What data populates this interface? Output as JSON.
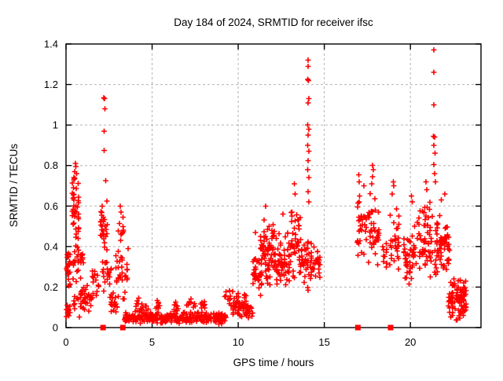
{
  "window": {
    "background": "#ffffff"
  },
  "chart_data": {
    "type": "scatter",
    "title": "Day 184 of 2024, SRMTID for receiver ifsc",
    "xlabel": "GPS time / hours",
    "ylabel": "SRMTID / TECUs",
    "xlim": [
      0,
      24.1
    ],
    "ylim": [
      0,
      1.4
    ],
    "xticks": [
      0,
      5,
      10,
      15,
      20
    ],
    "xtick_labels": [
      "0",
      "5",
      "10",
      "15",
      "20"
    ],
    "yticks": [
      0,
      0.2,
      0.4,
      0.6,
      0.8,
      1,
      1.2,
      1.4
    ],
    "ytick_labels": [
      "0",
      "0.2",
      "0.4",
      "0.6",
      "0.8",
      "1",
      "1.2",
      "1.4"
    ],
    "grid": true,
    "grid_color": "#b3b3b3",
    "border_color": "#000000",
    "marker": "plus",
    "marker_color": "#ff0000",
    "series_name": "SRMTID for receiver ifsc",
    "peak_points": [
      [
        0.5,
        0.77
      ],
      [
        0.55,
        0.81
      ],
      [
        0.57,
        0.795
      ],
      [
        0.62,
        0.76
      ],
      [
        0.45,
        0.74
      ],
      [
        2.2,
        1.135
      ],
      [
        2.24,
        1.13
      ],
      [
        2.27,
        1.08
      ],
      [
        2.21,
        0.97
      ],
      [
        2.22,
        0.875
      ],
      [
        2.3,
        0.725
      ],
      [
        3.15,
        0.6
      ],
      [
        3.2,
        0.57
      ],
      [
        11.0,
        0.47
      ],
      [
        11.6,
        0.6
      ],
      [
        12.6,
        0.56
      ],
      [
        13.25,
        0.71
      ],
      [
        13.3,
        0.66
      ],
      [
        14.05,
        1.32
      ],
      [
        14.06,
        1.29
      ],
      [
        14.03,
        1.225
      ],
      [
        14.08,
        1.22
      ],
      [
        14.1,
        1.13
      ],
      [
        14.05,
        1.11
      ],
      [
        14.04,
        1.0
      ],
      [
        14.1,
        0.98
      ],
      [
        14.05,
        0.95
      ],
      [
        14.04,
        0.9
      ],
      [
        14.1,
        0.87
      ],
      [
        14.05,
        0.825
      ],
      [
        14.04,
        0.78
      ],
      [
        14.1,
        0.74
      ],
      [
        14.05,
        0.67
      ],
      [
        14.1,
        0.62
      ],
      [
        17.0,
        0.755
      ],
      [
        17.03,
        0.72
      ],
      [
        17.3,
        0.7
      ],
      [
        17.05,
        0.65
      ],
      [
        17.8,
        0.8
      ],
      [
        17.84,
        0.78
      ],
      [
        17.8,
        0.745
      ],
      [
        17.75,
        0.71
      ],
      [
        19.0,
        0.72
      ],
      [
        19.04,
        0.7
      ],
      [
        18.95,
        0.66
      ],
      [
        20.05,
        0.65
      ],
      [
        20.1,
        0.62
      ],
      [
        20.9,
        0.72
      ],
      [
        20.95,
        0.68
      ],
      [
        21.35,
        1.37
      ],
      [
        21.36,
        1.26
      ],
      [
        21.35,
        1.1
      ],
      [
        21.33,
        0.945
      ],
      [
        21.4,
        0.94
      ],
      [
        21.36,
        0.9
      ],
      [
        21.42,
        0.86
      ],
      [
        21.35,
        0.805
      ],
      [
        21.4,
        0.76
      ],
      [
        21.45,
        0.72
      ],
      [
        22.0,
        0.66
      ],
      [
        21.8,
        0.63
      ]
    ],
    "cluster_regions": [
      [
        0.02,
        0.3,
        0.17,
        0.4,
        24
      ],
      [
        0.02,
        0.25,
        0.05,
        0.17,
        10
      ],
      [
        0.35,
        0.75,
        0.42,
        0.78,
        42
      ],
      [
        0.4,
        1.0,
        0.22,
        0.45,
        30
      ],
      [
        0.4,
        1.15,
        0.05,
        0.22,
        26
      ],
      [
        1.1,
        1.55,
        0.07,
        0.22,
        15
      ],
      [
        1.5,
        1.9,
        0.12,
        0.3,
        14
      ],
      [
        2.0,
        2.4,
        0.33,
        0.66,
        28
      ],
      [
        2.1,
        2.65,
        0.17,
        0.38,
        20
      ],
      [
        2.55,
        3.0,
        0.05,
        0.18,
        18
      ],
      [
        2.9,
        3.6,
        0.1,
        0.44,
        30
      ],
      [
        3.0,
        3.45,
        0.38,
        0.55,
        10
      ],
      [
        3.4,
        9.3,
        0.015,
        0.08,
        280
      ],
      [
        4.0,
        4.8,
        0.07,
        0.15,
        16
      ],
      [
        5.1,
        5.45,
        0.07,
        0.15,
        10
      ],
      [
        6.2,
        6.5,
        0.06,
        0.14,
        8
      ],
      [
        6.9,
        7.5,
        0.07,
        0.16,
        10
      ],
      [
        7.8,
        8.1,
        0.07,
        0.14,
        8
      ],
      [
        9.2,
        10.45,
        0.04,
        0.19,
        60
      ],
      [
        10.45,
        10.85,
        0.04,
        0.13,
        16
      ],
      [
        10.85,
        11.35,
        0.12,
        0.42,
        32
      ],
      [
        11.3,
        12.1,
        0.18,
        0.54,
        62
      ],
      [
        12.0,
        13.0,
        0.18,
        0.48,
        62
      ],
      [
        13.0,
        13.6,
        0.22,
        0.63,
        40
      ],
      [
        13.55,
        14.3,
        0.18,
        0.5,
        46
      ],
      [
        14.3,
        14.75,
        0.2,
        0.45,
        20
      ],
      [
        16.9,
        17.45,
        0.28,
        0.64,
        30
      ],
      [
        17.5,
        18.2,
        0.28,
        0.68,
        36
      ],
      [
        18.35,
        18.7,
        0.28,
        0.48,
        10
      ],
      [
        18.8,
        19.35,
        0.24,
        0.62,
        30
      ],
      [
        19.6,
        20.45,
        0.18,
        0.58,
        45
      ],
      [
        20.5,
        21.3,
        0.22,
        0.64,
        55
      ],
      [
        21.4,
        22.3,
        0.22,
        0.56,
        65
      ],
      [
        22.2,
        23.25,
        0.03,
        0.26,
        90
      ]
    ],
    "axis_event_squares_x": [
      2.15,
      3.3,
      16.95,
      18.85
    ],
    "seed": 20240184
  }
}
